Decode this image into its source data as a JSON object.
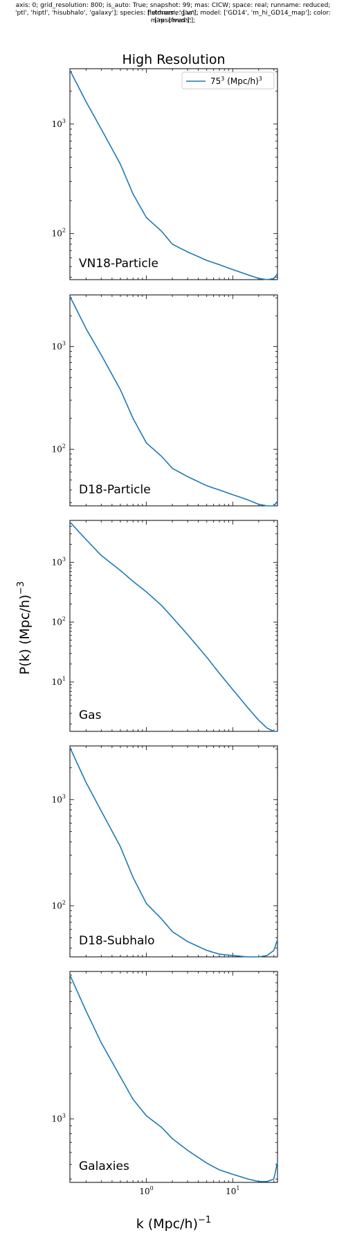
{
  "header": {
    "meta_lines": [
      "axis: 0; grid_resolution: 800; is_auto: True; snapshot: 99; mas: CICW; space: real; runname: reduced; fieldname: ['vn',",
      "'ptl', 'hiptl', 'hisubhalo', 'galaxy']; species: ['stmass', 'gas']; model: ['GD14', 'm_hi_GD14_map']; color: ['resolved'];",
      "map: ['mass'];"
    ],
    "title": "High Resolution"
  },
  "colors": {
    "line": "#1f77b4",
    "axes": "#000000"
  },
  "chart_data": {
    "type": "line",
    "title": "High Resolution",
    "xlabel": "k (Mpc/h)",
    "xlabel_exp": "−1",
    "ylabel": "P(k) (Mpc/h)",
    "ylabel_exp": "−3",
    "xscale": "log",
    "yscale": "log",
    "xlim": [
      0.13,
      33
    ],
    "xtick_labels": [
      {
        "value": 1,
        "base": "10",
        "exp": "0"
      },
      {
        "value": 10,
        "base": "10",
        "exp": "1"
      }
    ],
    "legend": {
      "location": "upper-right",
      "label_base": "75",
      "label_exp": "3",
      "label_mid": " (Mpc/h)",
      "label_exp2": "3"
    },
    "shared_x": [
      0.13,
      0.2,
      0.3,
      0.5,
      0.7,
      1.0,
      1.5,
      2,
      3,
      5,
      7,
      10,
      15,
      20,
      25,
      30,
      33
    ],
    "panels": [
      {
        "label": "VN18-Particle",
        "ylim": [
          38,
          3200
        ],
        "yticks": [
          {
            "value": 100,
            "base": "10",
            "exp": "2"
          },
          {
            "value": 1000,
            "base": "10",
            "exp": "3"
          }
        ],
        "values": [
          3100,
          1600,
          900,
          430,
          230,
          140,
          105,
          80,
          68,
          57,
          52,
          47,
          42,
          39,
          38,
          39,
          43
        ]
      },
      {
        "label": "D18-Particle",
        "ylim": [
          28,
          3200
        ],
        "yticks": [
          {
            "value": 100,
            "base": "10",
            "exp": "2"
          },
          {
            "value": 1000,
            "base": "10",
            "exp": "3"
          }
        ],
        "values": [
          3100,
          1500,
          830,
          380,
          200,
          115,
          85,
          65,
          54,
          44,
          40,
          36,
          32,
          29,
          28,
          28,
          31
        ]
      },
      {
        "label": "Gas",
        "ylim": [
          1.5,
          5000
        ],
        "yticks": [
          {
            "value": 10,
            "base": "10",
            "exp": "1"
          },
          {
            "value": 100,
            "base": "10",
            "exp": "2"
          },
          {
            "value": 1000,
            "base": "10",
            "exp": "3"
          }
        ],
        "values": [
          4700,
          2400,
          1300,
          730,
          480,
          320,
          190,
          120,
          62,
          26,
          14,
          7.5,
          3.7,
          2.3,
          1.7,
          1.5,
          1.5
        ]
      },
      {
        "label": "D18-Subhalo",
        "ylim": [
          33,
          3200
        ],
        "yticks": [
          {
            "value": 100,
            "base": "10",
            "exp": "2"
          },
          {
            "value": 1000,
            "base": "10",
            "exp": "3"
          }
        ],
        "values": [
          3100,
          1450,
          780,
          360,
          185,
          105,
          75,
          57,
          46,
          38,
          35,
          34,
          33,
          33,
          34,
          38,
          48
        ]
      },
      {
        "label": "Galaxies",
        "ylim": [
          380,
          9500
        ],
        "yticks": [
          {
            "value": 1000,
            "base": "10",
            "exp": "3"
          }
        ],
        "values": [
          9000,
          5200,
          3200,
          1900,
          1350,
          1050,
          880,
          740,
          620,
          510,
          460,
          430,
          400,
          385,
          385,
          400,
          520
        ]
      }
    ]
  }
}
